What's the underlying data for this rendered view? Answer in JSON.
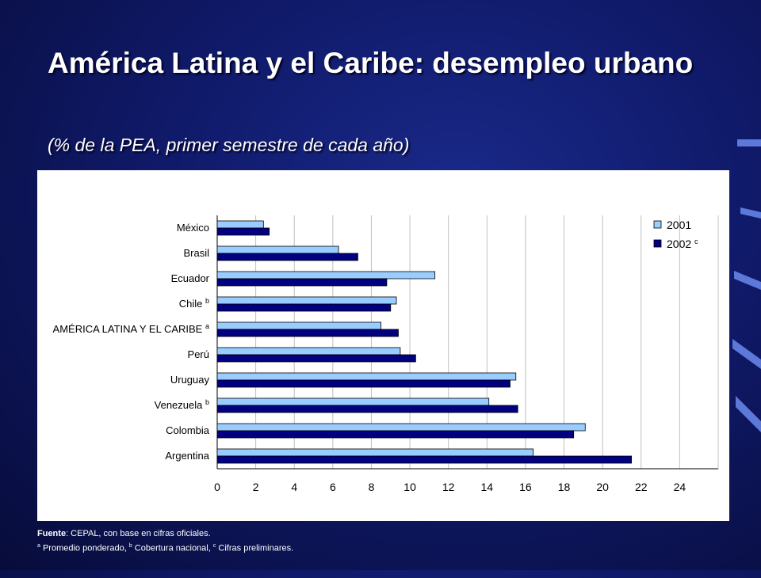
{
  "slide": {
    "title": "América Latina y el Caribe: desempleo urbano",
    "subtitle": "(% de la PEA, primer semestre de cada año)",
    "footer": {
      "source_label": "Fuente",
      "source_text": ": CEPAL, con base en cifras oficiales.",
      "notes": [
        {
          "mark": "a",
          "text": " Promedio ponderado, "
        },
        {
          "mark": "b",
          "text": " Cobertura nacional, "
        },
        {
          "mark": "c",
          "text": " Cifras preliminares."
        }
      ]
    }
  },
  "colors": {
    "series_2001": "#99ccff",
    "series_2002": "#000080",
    "grid": "#c0c0c0"
  },
  "chart_data": {
    "type": "bar",
    "orientation": "horizontal",
    "categories": [
      "México",
      "Brasil",
      "Ecuador",
      "Chile",
      "AMÉRICA LATINA Y EL CARIBE",
      "Perú",
      "Uruguay",
      "Venezuela",
      "Colombia",
      "Argentina"
    ],
    "category_notes": [
      "",
      "",
      "",
      "b",
      "a",
      "",
      "",
      "b",
      "",
      ""
    ],
    "series": [
      {
        "name": "2001",
        "note": "",
        "values": [
          2.4,
          6.3,
          11.3,
          9.3,
          8.5,
          9.5,
          15.5,
          14.1,
          19.1,
          16.4
        ]
      },
      {
        "name": "2002",
        "note": "c",
        "values": [
          2.7,
          7.3,
          8.8,
          9.0,
          9.4,
          10.3,
          15.2,
          15.6,
          18.5,
          21.5
        ]
      }
    ],
    "xlim": [
      0,
      26
    ],
    "x_ticks": [
      "0",
      "2",
      "4",
      "6",
      "8",
      "10",
      "12",
      "14",
      "16",
      "18",
      "20",
      "22",
      "24"
    ],
    "grid": true,
    "legend_position": "top-right"
  }
}
